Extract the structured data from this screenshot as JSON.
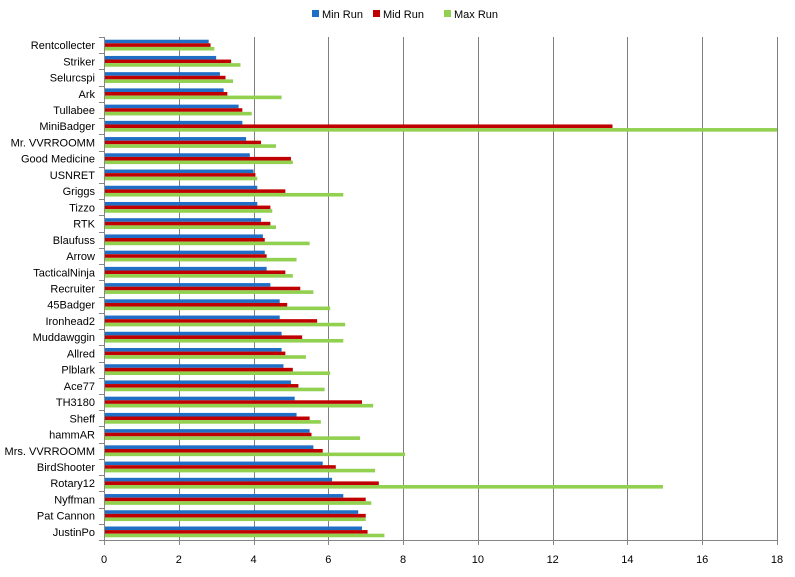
{
  "chart_data": {
    "type": "bar",
    "orientation": "horizontal",
    "categories": [
      "Rentcollecter",
      "Striker",
      "Selurcspi",
      "Ark",
      "Tullabee",
      "MiniBadger",
      "Mr. VVRROOMM",
      "Good Medicine",
      "USNRET",
      "Griggs",
      "Tizzo",
      "RTK",
      "Blaufuss",
      "Arrow",
      "TacticalNinja",
      "Recruiter",
      "45Badger",
      "Ironhead2",
      "Muddawggin",
      "Allred",
      "Plblark",
      "Ace77",
      "TH3180",
      "Sheff",
      "hammAR",
      "Mrs. VVRROOMM",
      "BirdShooter",
      "Rotary12",
      "Nyffman",
      "Pat Cannon",
      "JustinPo"
    ],
    "series": [
      {
        "name": "Min Run",
        "color": "#1f6fc6",
        "values": [
          2.8,
          3.0,
          3.1,
          3.2,
          3.6,
          3.7,
          3.8,
          3.9,
          4.0,
          4.1,
          4.1,
          4.2,
          4.25,
          4.3,
          4.35,
          4.45,
          4.7,
          4.7,
          4.75,
          4.75,
          4.8,
          5.0,
          5.1,
          5.15,
          5.5,
          5.6,
          5.85,
          6.1,
          6.4,
          6.8,
          6.9
        ]
      },
      {
        "name": "Mid Run",
        "color": "#c00000",
        "values": [
          2.85,
          3.4,
          3.25,
          3.3,
          3.7,
          13.6,
          4.2,
          5.0,
          4.05,
          4.85,
          4.45,
          4.45,
          4.3,
          4.35,
          4.85,
          5.25,
          4.9,
          5.7,
          5.3,
          4.85,
          5.05,
          5.2,
          6.9,
          5.5,
          5.55,
          5.85,
          6.2,
          7.35,
          7.0,
          7.0,
          7.05
        ]
      },
      {
        "name": "Max Run",
        "color": "#92d050",
        "values": [
          2.95,
          3.65,
          3.45,
          4.75,
          3.95,
          18.0,
          4.6,
          5.05,
          4.1,
          6.4,
          4.5,
          4.6,
          5.5,
          5.15,
          5.05,
          5.6,
          6.05,
          6.45,
          6.4,
          5.4,
          6.05,
          5.9,
          7.2,
          5.8,
          6.85,
          8.05,
          7.25,
          14.95,
          7.15,
          7.0,
          7.5
        ]
      }
    ],
    "xlim": [
      0,
      18
    ],
    "xticks": [
      "0",
      "2",
      "4",
      "6",
      "8",
      "10",
      "12",
      "14",
      "16",
      "18"
    ],
    "grid": "vertical",
    "legend": "top-center"
  }
}
